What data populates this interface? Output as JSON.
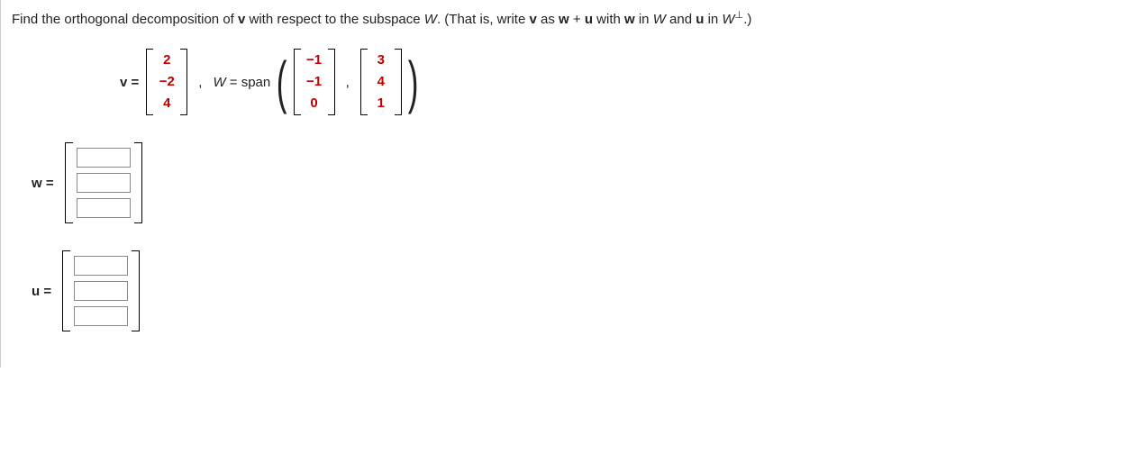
{
  "prompt": {
    "pre": "Find the orthogonal decomposition of ",
    "v": "v",
    "mid1": " with respect to the subspace ",
    "W": "W",
    "mid2": ". (That is, write ",
    "as": " as ",
    "w": "w",
    "plus": " + ",
    "u": "u",
    "with": " with ",
    "in1": " in ",
    "and": " and ",
    "in2": " in ",
    "Wp": "W",
    "perp": "⊥",
    "end": ".)"
  },
  "eq": {
    "v_label": "v =",
    "v_vec": [
      "2",
      "−2",
      "4"
    ],
    "comma": ",",
    "W_label_pre": "W",
    "W_label_post": " = span",
    "b1": [
      "−1",
      "−1",
      "0"
    ],
    "b2": [
      "3",
      "4",
      "1"
    ]
  },
  "answers": {
    "w_label": "w =",
    "u_label": "u ="
  },
  "style": {
    "red": "#c00000",
    "text": "#222222",
    "input_border": "#888888"
  }
}
